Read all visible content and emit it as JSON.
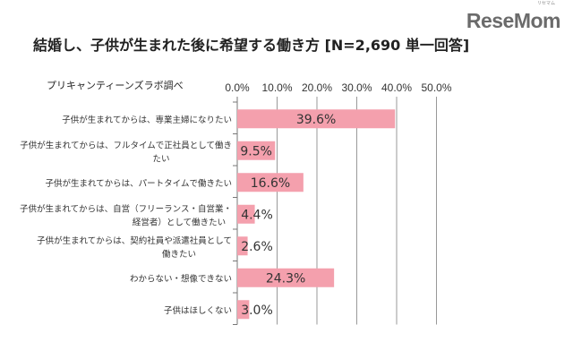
{
  "logo": {
    "text": "ReseMom",
    "ruby": "リセマム"
  },
  "title": "結婚し、子供が生まれた後に希望する働き方 [N=2,690 単一回答]",
  "source": "プリキャンティーンズラボ調べ",
  "colors": {
    "bar": "#f4a0ad",
    "grid": "#999999"
  },
  "chart_data": {
    "type": "bar",
    "orientation": "horizontal",
    "title": "結婚し、子供が生まれた後に希望する働き方 [N=2,690 単一回答]",
    "categories": [
      [
        "子供が生まれてからは、専業主婦になりたい"
      ],
      [
        "子供が生まれてからは、フルタイムで正社員として働き",
        "たい"
      ],
      [
        "子供が生まれてからは、パートタイムで働きたい"
      ],
      [
        "子供が生まれてからは、自営（フリーランス・自営業・",
        "経営者）として働きたい"
      ],
      [
        "子供が生まれてからは、契約社員や派遣社員として",
        "働きたい"
      ],
      [
        "わからない・想像できない"
      ],
      [
        "子供はほしくない"
      ]
    ],
    "values": [
      39.6,
      9.5,
      16.6,
      4.4,
      2.6,
      24.3,
      3.0
    ],
    "value_labels": [
      "39.6%",
      "9.5%",
      "16.6%",
      "4.4%",
      "2.6%",
      "24.3%",
      "3.0%"
    ],
    "xlim": [
      0,
      50
    ],
    "ticks": [
      "0.0%",
      "10.0%",
      "20.0%",
      "30.0%",
      "40.0%",
      "50.0%"
    ],
    "tick_values": [
      0,
      10,
      20,
      30,
      40,
      50
    ],
    "grid": true,
    "axis_position": "top"
  }
}
